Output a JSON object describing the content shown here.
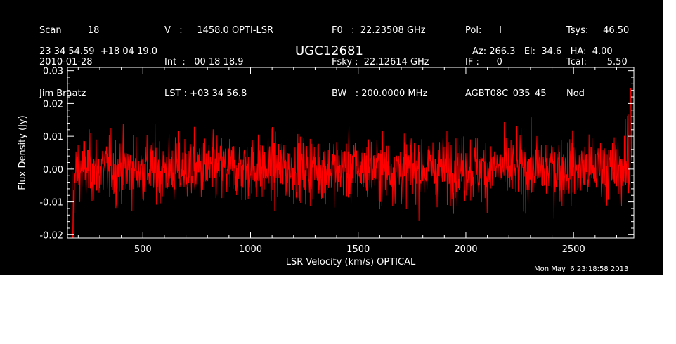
{
  "header": {
    "col1": [
      "Scan         18",
      "2010-01-28",
      "Jim Braatz"
    ],
    "col2": [
      "V   :     1458.0 OPTI-LSR",
      "Int  :   00 18 18.9",
      "LST : +03 34 56.8"
    ],
    "col3": [
      "F0   :  22.23508 GHz",
      "Fsky :  22.12614 GHz",
      "BW   : 200.0000 MHz"
    ],
    "col4": [
      "Pol:      I",
      "IF :      0",
      "AGBT08C_035_45"
    ],
    "col5": [
      "Tsys:     46.50",
      "Tcal:       5.50",
      "Nod"
    ],
    "coords": "23 34 54.59  +18 04 19.0",
    "source": "UGC12681",
    "azel": "Az: 266.3   El:  34.6   HA:  4.00",
    "timestamp": "Mon May  6 23:18:58 2013"
  },
  "chart_data": {
    "type": "line",
    "xlabel": "LSR Velocity (km/s) OPTICAL",
    "ylabel": "Flux Density (Jy)",
    "xlim": [
      150,
      2780
    ],
    "ylim": [
      -0.021,
      0.031
    ],
    "xticks": [
      500,
      1000,
      1500,
      2000,
      2500
    ],
    "yticks": [
      -0.02,
      -0.01,
      0.0,
      0.01,
      0.02,
      0.03
    ],
    "ytick_labels": [
      "-0.02",
      "-0.01",
      "0.00",
      "0.01",
      "0.02",
      "0.03"
    ],
    "series": [
      {
        "color": "#ff0000",
        "x_range": [
          170,
          2770
        ],
        "noise_rms_jy": 0.005,
        "mean_jy": 0.0,
        "features": [
          {
            "x": 175,
            "y": -0.018
          },
          {
            "x": 2765,
            "y": 0.025
          },
          {
            "x": 2752,
            "y": 0.016
          }
        ]
      }
    ],
    "grid": false
  },
  "colors": {
    "background": "#000000",
    "axes": "#ffffff",
    "trace": "#ff0000"
  }
}
